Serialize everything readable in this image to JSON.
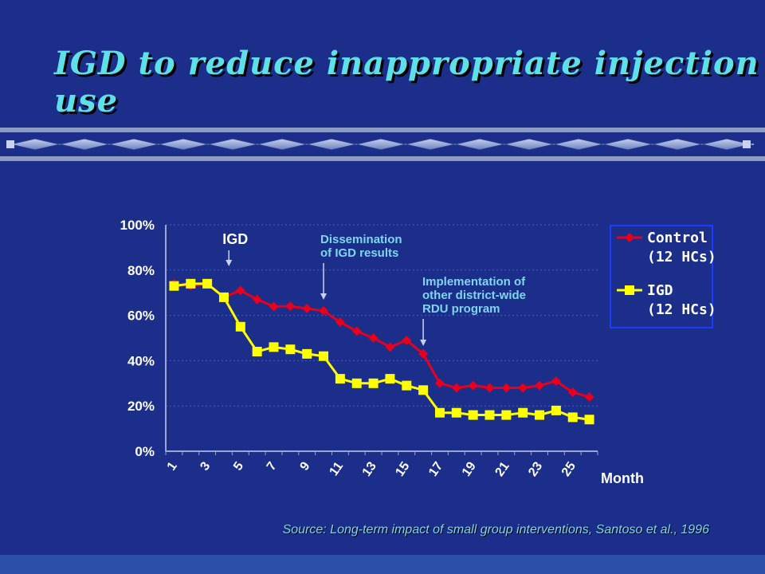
{
  "slide": {
    "title": "IGD to reduce inappropriate injection use",
    "source": "Source: Long-term impact of small group interventions, Santoso et al., 1996"
  },
  "colors": {
    "background": "#1a2e8a",
    "title": "#5ee0e8",
    "control": "#e8001c",
    "igd": "#ffff00",
    "annotation": "#7fd6f0",
    "legend_border": "#1e3cff"
  },
  "chart_data": {
    "type": "line",
    "x": [
      1,
      2,
      3,
      4,
      5,
      6,
      7,
      8,
      9,
      10,
      11,
      12,
      13,
      14,
      15,
      16,
      17,
      18,
      19,
      20,
      21,
      22,
      23,
      24,
      25,
      26
    ],
    "x_tick_labels": [
      "1",
      "3",
      "5",
      "7",
      "9",
      "11",
      "13",
      "15",
      "17",
      "19",
      "21",
      "23",
      "25"
    ],
    "xlabel": "Month",
    "ylabel": "",
    "ylim": [
      0,
      100
    ],
    "y_tick_labels": [
      "0%",
      "20%",
      "40%",
      "60%",
      "80%",
      "100%"
    ],
    "grid": true,
    "legend_placement": "right",
    "series": [
      {
        "name_line1": "Control",
        "name_line2": "(12 HCs)",
        "marker": "diamond",
        "values": [
          74,
          73,
          74,
          68,
          71,
          67,
          64,
          64,
          63,
          62,
          57,
          53,
          50,
          46,
          49,
          43,
          30,
          28,
          29,
          28,
          28,
          28,
          29,
          31,
          26,
          24
        ]
      },
      {
        "name_line1": "IGD",
        "name_line2": "(12 HCs)",
        "marker": "square",
        "values": [
          73,
          74,
          74,
          68,
          55,
          44,
          46,
          45,
          43,
          42,
          32,
          30,
          30,
          32,
          29,
          27,
          17,
          17,
          16,
          16,
          16,
          17,
          16,
          18,
          15,
          14
        ]
      }
    ],
    "annotations": [
      {
        "lines": [
          "IGD"
        ],
        "month": 4.3,
        "style": "big"
      },
      {
        "lines": [
          "Dissemination",
          "of IGD results"
        ],
        "month": 10,
        "style": "normal"
      },
      {
        "lines": [
          "Implementation of",
          "other district-wide",
          "RDU program"
        ],
        "month": 16,
        "style": "normal"
      }
    ]
  }
}
